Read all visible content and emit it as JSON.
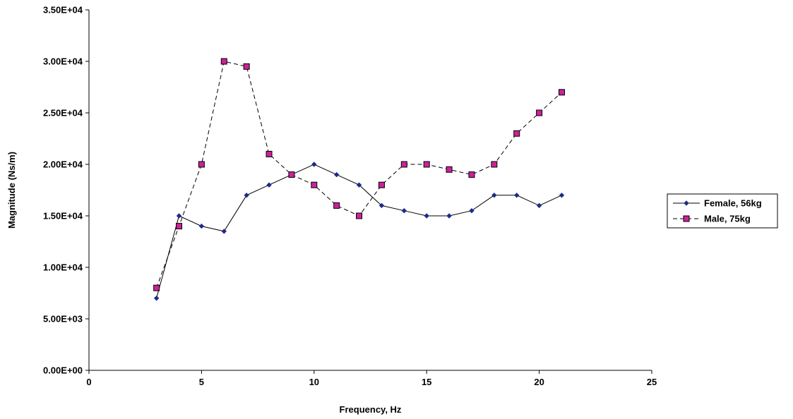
{
  "chart_data": {
    "type": "line",
    "title": "",
    "xlabel": "Frequency, Hz",
    "ylabel": "Magnitude (Ns/m)",
    "xlim": [
      0,
      25
    ],
    "ylim": [
      0,
      35000
    ],
    "x_ticks": [
      {
        "value": 0,
        "label": "0"
      },
      {
        "value": 5,
        "label": "5"
      },
      {
        "value": 10,
        "label": "10"
      },
      {
        "value": 15,
        "label": "15"
      },
      {
        "value": 20,
        "label": "20"
      },
      {
        "value": 25,
        "label": "25"
      }
    ],
    "y_ticks": [
      {
        "value": 0,
        "label": "0.00E+00"
      },
      {
        "value": 5000,
        "label": "5.00E+03"
      },
      {
        "value": 10000,
        "label": "1.00E+04"
      },
      {
        "value": 15000,
        "label": "1.50E+04"
      },
      {
        "value": 20000,
        "label": "2.00E+04"
      },
      {
        "value": 25000,
        "label": "2.50E+04"
      },
      {
        "value": 30000,
        "label": "3.00E+04"
      },
      {
        "value": 35000,
        "label": "3.50E+04"
      }
    ],
    "grid": false,
    "legend_position": "right",
    "series": [
      {
        "name": "Female, 56kg",
        "color": "#1f2a8c",
        "marker": "diamond",
        "line_style": "solid",
        "x": [
          3,
          4,
          5,
          6,
          7,
          8,
          9,
          10,
          11,
          12,
          13,
          14,
          15,
          16,
          17,
          18,
          19,
          20,
          21
        ],
        "y": [
          7000,
          15000,
          14000,
          13500,
          17000,
          18000,
          19000,
          20000,
          19000,
          18000,
          16000,
          15500,
          15000,
          15000,
          15500,
          17000,
          17000,
          16000,
          17000
        ]
      },
      {
        "name": "Male, 75kg",
        "color": "#cc2299",
        "marker": "square",
        "line_style": "dashed",
        "x": [
          3,
          4,
          5,
          6,
          7,
          8,
          9,
          10,
          11,
          12,
          13,
          14,
          15,
          16,
          17,
          18,
          19,
          20,
          21
        ],
        "y": [
          8000,
          14000,
          20000,
          30000,
          29500,
          21000,
          19000,
          18000,
          16000,
          15000,
          18000,
          20000,
          20000,
          19500,
          19000,
          20000,
          23000,
          25000,
          27000
        ]
      }
    ]
  }
}
